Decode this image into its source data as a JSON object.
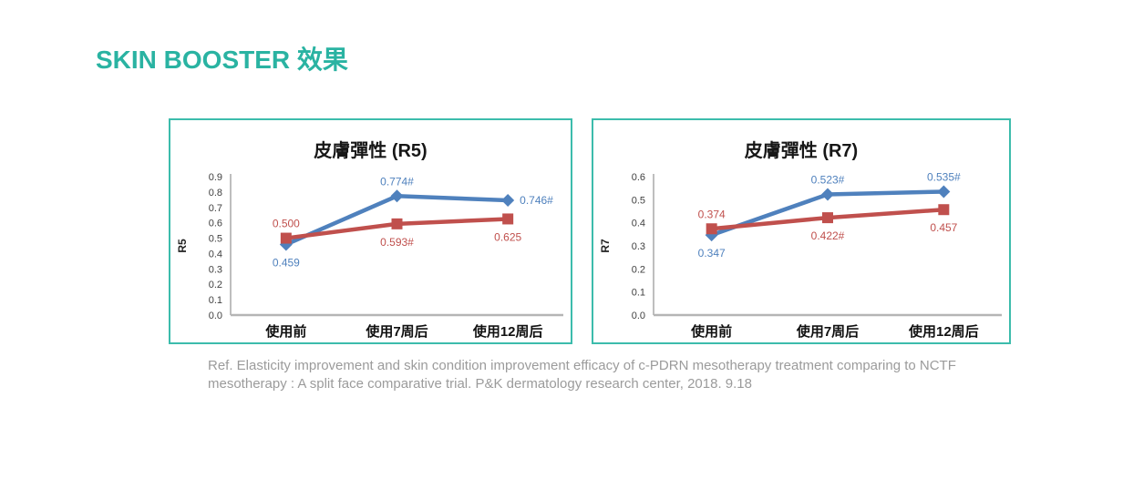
{
  "page": {
    "title": "SKIN BOOSTER 效果"
  },
  "colors": {
    "accent_teal": "#2ab3a2",
    "panel_border_teal": "#3cbcac",
    "series_blue": "#4f81bd",
    "series_red": "#c0504d",
    "axis_gray": "#a8a8a8",
    "reference_gray": "#9b9b9b"
  },
  "reference": {
    "line1": "Ref. Elasticity improvement and skin condition improvement efficacy of c-PDRN mesotherapy treatment comparing to NCTF",
    "line2": "mesotherapy : A split face comparative trial. P&K dermatology research center, 2018. 9.18"
  },
  "chart_data": [
    {
      "type": "line",
      "title": "皮膚彈性 (R5)",
      "ylabel": "R5",
      "xlabel": "",
      "categories": [
        "使用前",
        "使用7周后",
        "使用12周后"
      ],
      "ylim": [
        0,
        0.9
      ],
      "ytick_step": 0.1,
      "grid": false,
      "legend_position": "none",
      "series": [
        {
          "name": "blue-series",
          "color": "#4f81bd",
          "marker": "diamond",
          "values": [
            0.459,
            0.774,
            0.746
          ],
          "labels": [
            "0.459",
            "0.774#",
            "0.746#"
          ],
          "label_pos": [
            "below",
            "above",
            "right"
          ]
        },
        {
          "name": "red-series",
          "color": "#c0504d",
          "marker": "square",
          "values": [
            0.5,
            0.593,
            0.625
          ],
          "labels": [
            "0.500",
            "0.593#",
            "0.625"
          ],
          "label_pos": [
            "above",
            "below",
            "below"
          ]
        }
      ]
    },
    {
      "type": "line",
      "title": "皮膚彈性 (R7)",
      "ylabel": "R7",
      "xlabel": "",
      "categories": [
        "使用前",
        "使用7周后",
        "使用12周后"
      ],
      "ylim": [
        0,
        0.6
      ],
      "ytick_step": 0.1,
      "grid": false,
      "legend_position": "none",
      "series": [
        {
          "name": "blue-series",
          "color": "#4f81bd",
          "marker": "diamond",
          "values": [
            0.347,
            0.523,
            0.535
          ],
          "labels": [
            "0.347",
            "0.523#",
            "0.535#"
          ],
          "label_pos": [
            "below",
            "above",
            "above"
          ]
        },
        {
          "name": "red-series",
          "color": "#c0504d",
          "marker": "square",
          "values": [
            0.374,
            0.422,
            0.457
          ],
          "labels": [
            "0.374",
            "0.422#",
            "0.457"
          ],
          "label_pos": [
            "above",
            "below",
            "below"
          ]
        }
      ]
    }
  ]
}
